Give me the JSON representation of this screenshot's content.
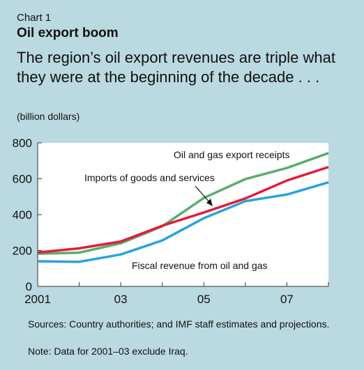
{
  "header": {
    "chart_label": "Chart 1",
    "title": "Oil export boom",
    "subtitle": "The region’s oil export revenues are triple what they were at the beginning of the decade . . .",
    "unit": "(billion dollars)"
  },
  "footer": {
    "sources": "Sources: Country authorities; and IMF staff estimates and projections.",
    "note": "Note: Data for 2001–03 exclude Iraq."
  },
  "chart_data": {
    "type": "line",
    "x": [
      2001,
      2002,
      2003,
      2004,
      2005,
      2006,
      2007,
      2008
    ],
    "x_tick_values": [
      2001,
      2003,
      2005,
      2007
    ],
    "x_tick_labels": [
      "2001",
      "03",
      "05",
      "07"
    ],
    "ylim": [
      0,
      800
    ],
    "y_ticks": [
      0,
      200,
      400,
      600,
      800
    ],
    "xlim": [
      2001,
      2008
    ],
    "grid": false,
    "series": [
      {
        "name": "Oil and gas export receipts",
        "color": "#5aac6e",
        "values": [
          182,
          188,
          240,
          335,
          493,
          598,
          660,
          743
        ]
      },
      {
        "name": "Imports of goods and services",
        "color": "#e41b3c",
        "values": [
          189,
          212,
          250,
          338,
          412,
          490,
          590,
          665
        ]
      },
      {
        "name": "Fiscal revenue from oil and gas",
        "color": "#2aa2dc",
        "values": [
          140,
          137,
          178,
          256,
          380,
          475,
          512,
          580
        ]
      }
    ]
  }
}
